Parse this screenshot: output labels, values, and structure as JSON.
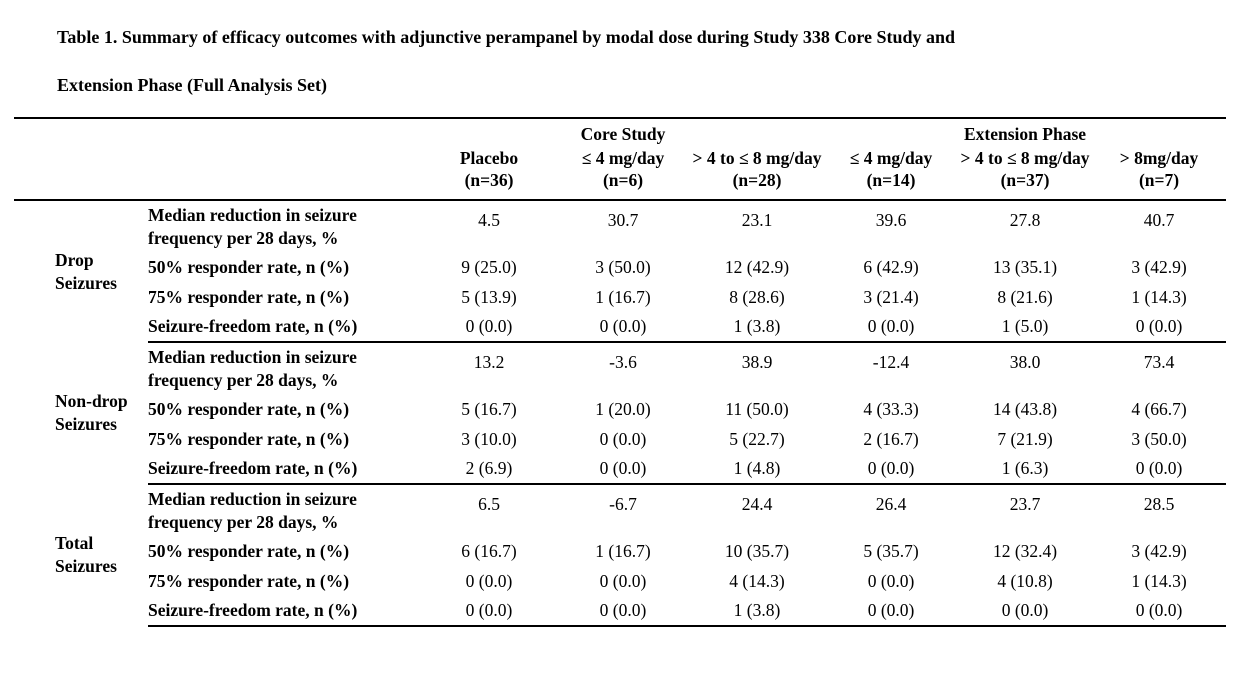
{
  "caption": {
    "line1": "Table 1. Summary of efficacy outcomes with adjunctive perampanel by modal dose during Study 338 Core Study and",
    "line2": "Extension Phase (Full Analysis Set)"
  },
  "table": {
    "phase_headers": [
      {
        "label": "Core Study"
      },
      {
        "label": "Extension Phase"
      }
    ],
    "column_headers": [
      {
        "dose": "Placebo",
        "n": "(n=36)"
      },
      {
        "dose": "≤ 4 mg/day",
        "n": "(n=6)"
      },
      {
        "dose": "> 4 to ≤ 8 mg/day",
        "n": "(n=28)"
      },
      {
        "dose": "≤ 4 mg/day",
        "n": "(n=14)"
      },
      {
        "dose": "> 4 to ≤ 8 mg/day",
        "n": "(n=37)"
      },
      {
        "dose": "> 8mg/day",
        "n": "(n=7)"
      }
    ],
    "sections": [
      {
        "group": "Drop Seizures",
        "rows": [
          {
            "label": "Median reduction in seizure frequency per 28 days, %",
            "values": [
              "4.5",
              "30.7",
              "23.1",
              "39.6",
              "27.8",
              "40.7"
            ]
          },
          {
            "label": "50% responder rate, n (%)",
            "values": [
              "9 (25.0)",
              "3 (50.0)",
              "12 (42.9)",
              "6 (42.9)",
              "13 (35.1)",
              "3 (42.9)"
            ]
          },
          {
            "label": "75% responder rate, n (%)",
            "values": [
              "5 (13.9)",
              "1 (16.7)",
              "8 (28.6)",
              "3 (21.4)",
              "8 (21.6)",
              "1 (14.3)"
            ]
          },
          {
            "label": "Seizure-freedom rate, n (%)",
            "values": [
              "0 (0.0)",
              "0 (0.0)",
              "1 (3.8)",
              "0 (0.0)",
              "1 (5.0)",
              "0 (0.0)"
            ]
          }
        ]
      },
      {
        "group": "Non-drop Seizures",
        "rows": [
          {
            "label": "Median reduction in seizure frequency per 28 days, %",
            "values": [
              "13.2",
              "-3.6",
              "38.9",
              "-12.4",
              "38.0",
              "73.4"
            ]
          },
          {
            "label": "50% responder rate, n (%)",
            "values": [
              "5 (16.7)",
              "1 (20.0)",
              "11 (50.0)",
              "4 (33.3)",
              "14 (43.8)",
              "4 (66.7)"
            ]
          },
          {
            "label": "75% responder rate, n (%)",
            "values": [
              "3 (10.0)",
              "0 (0.0)",
              "5 (22.7)",
              "2 (16.7)",
              "7 (21.9)",
              "3 (50.0)"
            ]
          },
          {
            "label": "Seizure-freedom rate, n (%)",
            "values": [
              "2 (6.9)",
              "0 (0.0)",
              "1 (4.8)",
              "0 (0.0)",
              "1 (6.3)",
              "0 (0.0)"
            ]
          }
        ]
      },
      {
        "group": "Total Seizures",
        "rows": [
          {
            "label": "Median reduction in seizure frequency per 28 days, %",
            "values": [
              "6.5",
              "-6.7",
              "24.4",
              "26.4",
              "23.7",
              "28.5"
            ]
          },
          {
            "label": "50% responder rate, n (%)",
            "values": [
              "6 (16.7)",
              "1 (16.7)",
              "10 (35.7)",
              "5 (35.7)",
              "12 (32.4)",
              "3 (42.9)"
            ]
          },
          {
            "label": "75% responder rate, n (%)",
            "values": [
              "0 (0.0)",
              "0 (0.0)",
              "4 (14.3)",
              "0 (0.0)",
              "4 (10.8)",
              "1 (14.3)"
            ]
          },
          {
            "label": "Seizure-freedom rate, n (%)",
            "values": [
              "0 (0.0)",
              "0 (0.0)",
              "1 (3.8)",
              "0 (0.0)",
              "0 (0.0)",
              "0 (0.0)"
            ]
          }
        ]
      }
    ]
  }
}
